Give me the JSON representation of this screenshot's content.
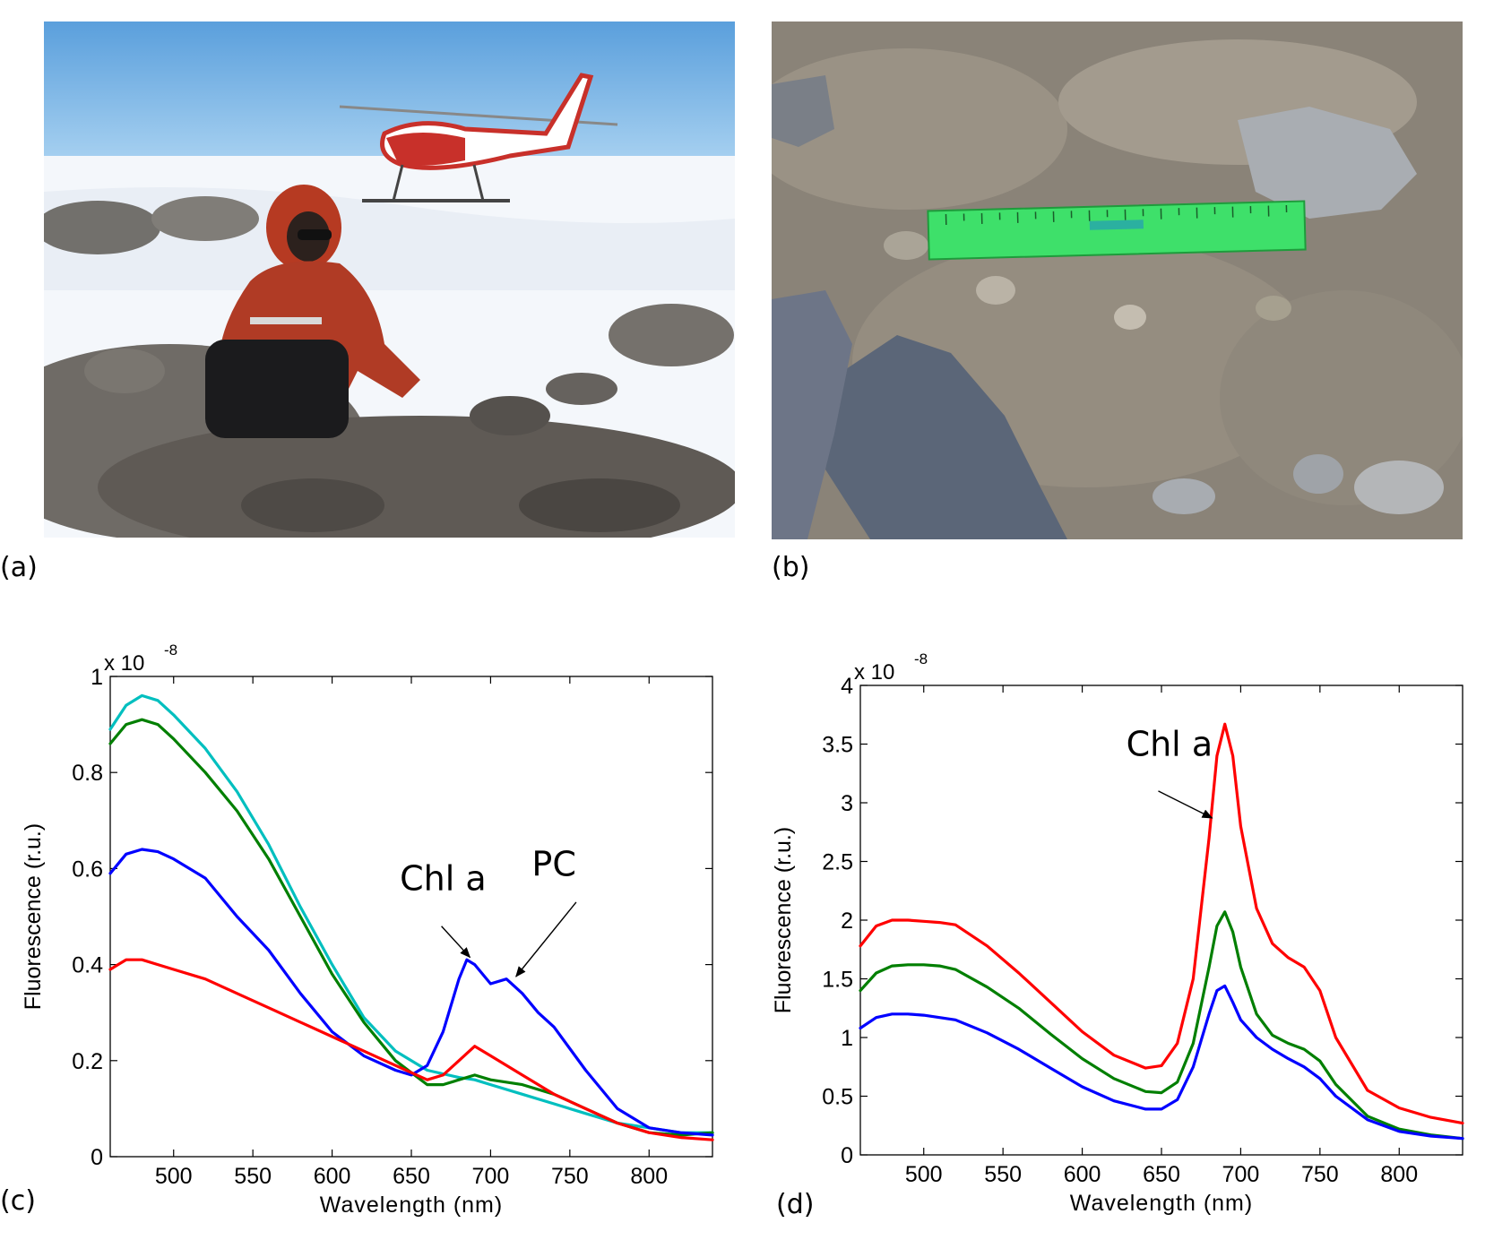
{
  "panels": {
    "a": {
      "label": "(a)"
    },
    "b": {
      "label": "(b)"
    },
    "c": {
      "label": "(c)"
    },
    "d": {
      "label": "(d)"
    }
  },
  "colors": {
    "blue": "#0000ff",
    "red": "#ff0000",
    "green": "#007f00",
    "cyan": "#00bfbf"
  },
  "chart_data": [
    {
      "panel": "c",
      "type": "line",
      "title": "",
      "xlabel": "Wavelength (nm)",
      "ylabel": "Fluorescence (r.u.)",
      "y_multiplier": "x 10",
      "y_multiplier_exp": "-8",
      "xlim": [
        460,
        840
      ],
      "ylim": [
        0,
        1
      ],
      "xticks": [
        500,
        550,
        600,
        650,
        700,
        750,
        800
      ],
      "yticks": [
        0,
        0.2,
        0.4,
        0.6,
        0.8,
        1
      ],
      "ytick_labels": [
        "0",
        "0.2",
        "0.4",
        "0.6",
        "0.8",
        "1"
      ],
      "grid": false,
      "series": [
        {
          "color": "cyan",
          "x": [
            460,
            470,
            480,
            490,
            500,
            520,
            540,
            560,
            580,
            600,
            620,
            640,
            660,
            680,
            690,
            700,
            720,
            740,
            760,
            780,
            800,
            820,
            840
          ],
          "y": [
            0.89,
            0.94,
            0.96,
            0.95,
            0.92,
            0.85,
            0.76,
            0.65,
            0.52,
            0.4,
            0.29,
            0.22,
            0.18,
            0.165,
            0.16,
            0.15,
            0.13,
            0.11,
            0.09,
            0.07,
            0.06,
            0.05,
            0.05
          ]
        },
        {
          "color": "green",
          "x": [
            460,
            470,
            480,
            490,
            500,
            520,
            540,
            560,
            580,
            600,
            620,
            640,
            660,
            670,
            680,
            690,
            700,
            720,
            740,
            760,
            780,
            800,
            820,
            840
          ],
          "y": [
            0.86,
            0.9,
            0.91,
            0.9,
            0.87,
            0.8,
            0.72,
            0.62,
            0.5,
            0.38,
            0.28,
            0.2,
            0.15,
            0.15,
            0.16,
            0.17,
            0.16,
            0.15,
            0.13,
            0.1,
            0.07,
            0.05,
            0.045,
            0.05
          ]
        },
        {
          "color": "blue",
          "x": [
            460,
            470,
            480,
            490,
            500,
            520,
            540,
            560,
            580,
            600,
            620,
            640,
            650,
            660,
            670,
            680,
            685,
            690,
            700,
            710,
            720,
            730,
            740,
            760,
            780,
            800,
            820,
            840
          ],
          "y": [
            0.59,
            0.63,
            0.64,
            0.635,
            0.62,
            0.58,
            0.5,
            0.43,
            0.34,
            0.26,
            0.21,
            0.18,
            0.17,
            0.19,
            0.26,
            0.37,
            0.41,
            0.4,
            0.36,
            0.37,
            0.34,
            0.3,
            0.27,
            0.18,
            0.1,
            0.06,
            0.05,
            0.045
          ]
        },
        {
          "color": "red",
          "x": [
            460,
            470,
            480,
            490,
            500,
            520,
            540,
            560,
            580,
            600,
            620,
            640,
            660,
            670,
            680,
            690,
            700,
            720,
            740,
            760,
            780,
            800,
            820,
            840
          ],
          "y": [
            0.39,
            0.41,
            0.41,
            0.4,
            0.39,
            0.37,
            0.34,
            0.31,
            0.28,
            0.25,
            0.22,
            0.19,
            0.16,
            0.17,
            0.2,
            0.23,
            0.21,
            0.17,
            0.13,
            0.1,
            0.07,
            0.05,
            0.04,
            0.035
          ]
        }
      ],
      "annotations": [
        {
          "text": "Chl a",
          "x": 670,
          "y": 0.555,
          "arrow_from": [
            669,
            0.48
          ],
          "arrow_to": [
            687,
            0.415
          ]
        },
        {
          "text": "PC",
          "x": 740,
          "y": 0.585,
          "arrow_from": [
            754,
            0.53
          ],
          "arrow_to": [
            716,
            0.375
          ]
        }
      ]
    },
    {
      "panel": "d",
      "type": "line",
      "title": "",
      "xlabel": "Wavelength (nm)",
      "ylabel": "Fluorescence (r.u.)",
      "y_multiplier": "x 10",
      "y_multiplier_exp": "-8",
      "xlim": [
        460,
        840
      ],
      "ylim": [
        0,
        4
      ],
      "xticks": [
        500,
        550,
        600,
        650,
        700,
        750,
        800
      ],
      "yticks": [
        0,
        0.5,
        1,
        1.5,
        2,
        2.5,
        3,
        3.5,
        4
      ],
      "ytick_labels": [
        "0",
        "0.5",
        "1",
        "1.5",
        "2",
        "2.5",
        "3",
        "3.5",
        "4"
      ],
      "grid": false,
      "series": [
        {
          "color": "red",
          "x": [
            460,
            470,
            480,
            490,
            500,
            510,
            520,
            540,
            560,
            580,
            600,
            620,
            640,
            650,
            660,
            670,
            680,
            685,
            690,
            695,
            700,
            710,
            720,
            730,
            740,
            750,
            760,
            780,
            800,
            820,
            840
          ],
          "y": [
            1.78,
            1.95,
            2.0,
            2.0,
            1.99,
            1.98,
            1.96,
            1.78,
            1.55,
            1.3,
            1.05,
            0.85,
            0.74,
            0.76,
            0.95,
            1.5,
            2.7,
            3.4,
            3.67,
            3.4,
            2.8,
            2.1,
            1.8,
            1.68,
            1.6,
            1.4,
            1.0,
            0.55,
            0.4,
            0.32,
            0.27
          ]
        },
        {
          "color": "green",
          "x": [
            460,
            470,
            480,
            490,
            500,
            510,
            520,
            540,
            560,
            580,
            600,
            620,
            640,
            650,
            660,
            670,
            680,
            685,
            690,
            695,
            700,
            710,
            720,
            730,
            740,
            750,
            760,
            780,
            800,
            820,
            840
          ],
          "y": [
            1.4,
            1.55,
            1.61,
            1.62,
            1.62,
            1.61,
            1.58,
            1.43,
            1.25,
            1.03,
            0.82,
            0.65,
            0.54,
            0.53,
            0.62,
            0.95,
            1.6,
            1.95,
            2.07,
            1.9,
            1.6,
            1.2,
            1.02,
            0.95,
            0.9,
            0.8,
            0.6,
            0.33,
            0.22,
            0.17,
            0.14
          ]
        },
        {
          "color": "blue",
          "x": [
            460,
            470,
            480,
            490,
            500,
            510,
            520,
            540,
            560,
            580,
            600,
            620,
            640,
            650,
            660,
            670,
            680,
            685,
            690,
            695,
            700,
            710,
            720,
            730,
            740,
            750,
            760,
            780,
            800,
            820,
            840
          ],
          "y": [
            1.08,
            1.17,
            1.2,
            1.2,
            1.19,
            1.17,
            1.15,
            1.04,
            0.9,
            0.74,
            0.58,
            0.46,
            0.39,
            0.39,
            0.47,
            0.75,
            1.2,
            1.4,
            1.44,
            1.3,
            1.15,
            1.0,
            0.9,
            0.82,
            0.75,
            0.65,
            0.5,
            0.3,
            0.2,
            0.16,
            0.14
          ]
        }
      ],
      "annotations": [
        {
          "text": "Chl a",
          "x": 655,
          "y": 3.4,
          "arrow_from": [
            648,
            3.1
          ],
          "arrow_to": [
            682,
            2.87
          ]
        }
      ]
    }
  ]
}
